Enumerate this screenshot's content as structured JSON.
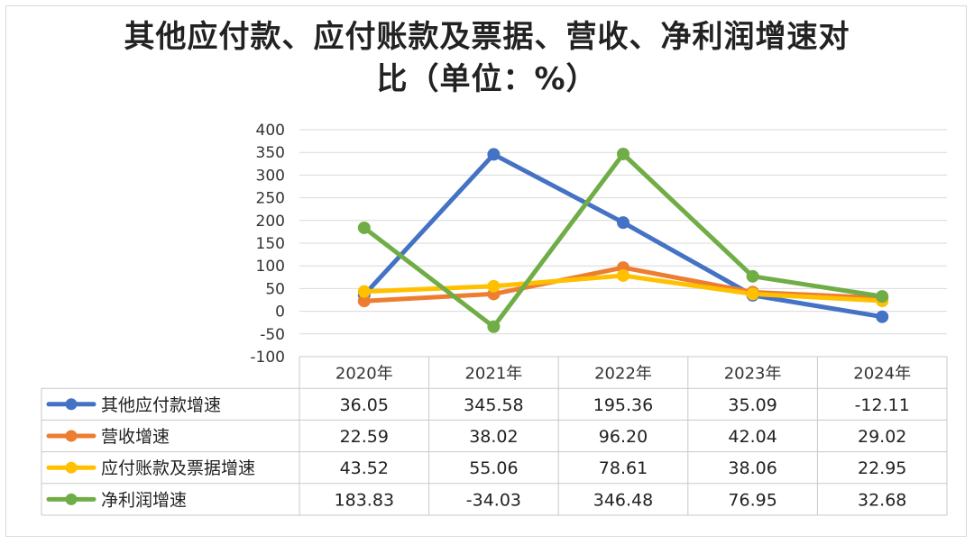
{
  "chart_data": {
    "type": "line",
    "title": "其他应付款、应付账款及票据、营收、净利润增速对比（单位：%）",
    "title_lines": [
      "其他应付款、应付账款及票据、营收、净利润增速对",
      "比（单位：%）"
    ],
    "categories": [
      "2020年",
      "2021年",
      "2022年",
      "2023年",
      "2024年"
    ],
    "ylim": [
      -100,
      400
    ],
    "yticks": [
      400,
      350,
      300,
      250,
      200,
      150,
      100,
      50,
      0,
      -50,
      -100
    ],
    "grid": true,
    "legend": "data-table",
    "series": [
      {
        "name": "其他应付款增速",
        "color": "#4472c4",
        "values": [
          36.05,
          345.58,
          195.36,
          35.09,
          -12.11
        ],
        "labels": [
          "36.05",
          "345.58",
          "195.36",
          "35.09",
          "-12.11"
        ]
      },
      {
        "name": "营收增速",
        "color": "#ed7d31",
        "values": [
          22.59,
          38.02,
          96.2,
          42.04,
          29.02
        ],
        "labels": [
          "22.59",
          "38.02",
          "96.20",
          "42.04",
          "29.02"
        ]
      },
      {
        "name": "应付账款及票据增速",
        "color": "#ffc000",
        "values": [
          43.52,
          55.06,
          78.61,
          38.06,
          22.95
        ],
        "labels": [
          "43.52",
          "55.06",
          "78.61",
          "38.06",
          "22.95"
        ]
      },
      {
        "name": "净利润增速",
        "color": "#70ad47",
        "values": [
          183.83,
          -34.03,
          346.48,
          76.95,
          32.68
        ],
        "labels": [
          "183.83",
          "-34.03",
          "346.48",
          "76.95",
          "32.68"
        ]
      }
    ]
  }
}
